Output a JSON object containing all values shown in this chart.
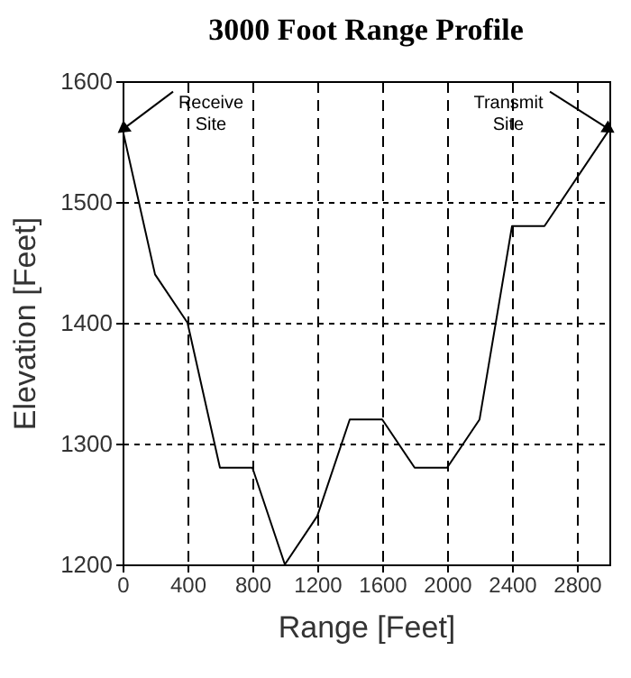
{
  "chart_data": {
    "type": "line",
    "title": "3000 Foot Range Profile",
    "xlabel": "Range [Feet]",
    "ylabel": "Elevation [Feet]",
    "x": [
      0,
      200,
      400,
      600,
      800,
      1000,
      1200,
      1400,
      1600,
      1800,
      2000,
      2200,
      2400,
      2600,
      3000
    ],
    "values": [
      1560,
      1440,
      1400,
      1280,
      1280,
      1200,
      1240,
      1320,
      1320,
      1280,
      1280,
      1320,
      1480,
      1480,
      1560
    ],
    "color": "#000000",
    "xlim": [
      0,
      3000
    ],
    "xticks": [
      0,
      400,
      800,
      1200,
      1600,
      2000,
      2400,
      2800
    ],
    "ylim": [
      1200,
      1600
    ],
    "yticks": [
      1200,
      1300,
      1400,
      1500,
      1600
    ],
    "grid": true,
    "marker": "none",
    "line_style": "solid",
    "annotations": [
      {
        "text": "Receive Site",
        "x": 0,
        "y": 1560
      },
      {
        "text": "Transmit Site",
        "x": 3000,
        "y": 1560
      }
    ]
  }
}
